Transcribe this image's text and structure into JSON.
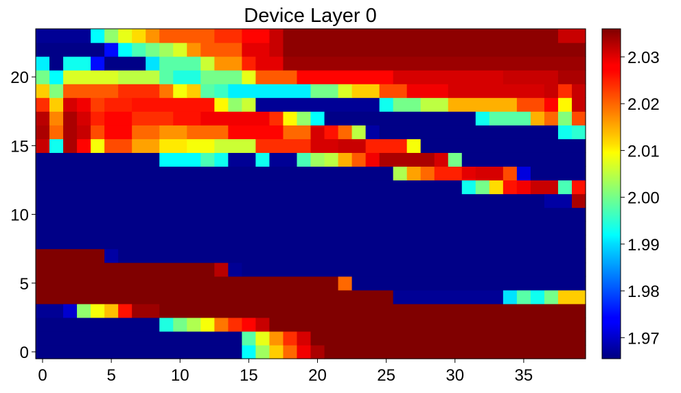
{
  "chart_data": {
    "type": "heatmap",
    "title": "Device Layer 0",
    "xlabel": "",
    "ylabel": "",
    "x_range": [
      -0.5,
      39.5
    ],
    "y_range": [
      -0.5,
      23.5
    ],
    "x_ticks": [
      "0",
      "5",
      "10",
      "15",
      "20",
      "25",
      "30",
      "35"
    ],
    "y_ticks": [
      "0",
      "5",
      "10",
      "15",
      "20"
    ],
    "colormap": "jet",
    "colorbar": {
      "min": 1.9655,
      "max": 2.036,
      "ticks": [
        "1.97",
        "1.98",
        "1.99",
        "2.00",
        "2.01",
        "2.02",
        "2.03"
      ]
    },
    "grid": false,
    "rows": [
      {
        "y": 0,
        "cells": [
          [
            0,
            14,
            1.966
          ],
          [
            15,
            15,
            1.992
          ],
          [
            16,
            16,
            2.003
          ],
          [
            17,
            17,
            2.013
          ],
          [
            18,
            18,
            2.02
          ],
          [
            19,
            19,
            2.028
          ],
          [
            20,
            20,
            2.033
          ],
          [
            21,
            39,
            2.036
          ]
        ]
      },
      {
        "y": 1,
        "cells": [
          [
            0,
            14,
            1.966
          ],
          [
            15,
            15,
            1.998
          ],
          [
            16,
            16,
            2.008
          ],
          [
            17,
            17,
            2.017
          ],
          [
            18,
            18,
            2.024
          ],
          [
            19,
            19,
            2.03
          ],
          [
            20,
            39,
            2.036
          ]
        ]
      },
      {
        "y": 2,
        "cells": [
          [
            0,
            8,
            1.966
          ],
          [
            9,
            9,
            1.994
          ],
          [
            10,
            10,
            2.0
          ],
          [
            11,
            11,
            2.004
          ],
          [
            12,
            12,
            2.009
          ],
          [
            13,
            13,
            2.019
          ],
          [
            14,
            14,
            2.024
          ],
          [
            15,
            15,
            2.027
          ],
          [
            16,
            16,
            2.031
          ],
          [
            17,
            39,
            2.036
          ]
        ]
      },
      {
        "y": 3,
        "cells": [
          [
            0,
            1,
            1.967
          ],
          [
            2,
            2,
            1.971
          ],
          [
            3,
            3,
            2.002
          ],
          [
            4,
            4,
            2.009
          ],
          [
            5,
            5,
            2.014
          ],
          [
            6,
            6,
            2.026
          ],
          [
            7,
            8,
            2.034
          ],
          [
            9,
            39,
            2.036
          ]
        ]
      },
      {
        "y": 4,
        "cells": [
          [
            0,
            25,
            2.036
          ],
          [
            26,
            33,
            1.967
          ],
          [
            34,
            34,
            1.99
          ],
          [
            35,
            35,
            1.998
          ],
          [
            36,
            36,
            1.993
          ],
          [
            37,
            37,
            2.0
          ],
          [
            38,
            39,
            2.013
          ]
        ]
      },
      {
        "y": 5,
        "cells": [
          [
            0,
            21,
            2.036
          ],
          [
            22,
            22,
            2.02
          ],
          [
            23,
            39,
            1.966
          ]
        ]
      },
      {
        "y": 6,
        "cells": [
          [
            0,
            12,
            2.036
          ],
          [
            13,
            13,
            2.032
          ],
          [
            14,
            14,
            1.967
          ],
          [
            15,
            39,
            1.966
          ]
        ]
      },
      {
        "y": 7,
        "cells": [
          [
            0,
            4,
            2.036
          ],
          [
            5,
            5,
            1.968
          ],
          [
            6,
            39,
            1.966
          ]
        ]
      },
      {
        "y": 8,
        "cells": [
          [
            0,
            39,
            1.966
          ]
        ]
      },
      {
        "y": 9,
        "cells": [
          [
            0,
            39,
            1.966
          ]
        ]
      },
      {
        "y": 10,
        "cells": [
          [
            0,
            39,
            1.966
          ]
        ]
      },
      {
        "y": 11,
        "cells": [
          [
            0,
            36,
            1.966
          ],
          [
            37,
            38,
            1.968
          ],
          [
            39,
            39,
            2.033
          ]
        ]
      },
      {
        "y": 12,
        "cells": [
          [
            0,
            30,
            1.966
          ],
          [
            31,
            31,
            1.993
          ],
          [
            32,
            32,
            2.0
          ],
          [
            33,
            33,
            2.012
          ],
          [
            34,
            34,
            2.026
          ],
          [
            35,
            35,
            2.028
          ],
          [
            36,
            37,
            2.031
          ],
          [
            38,
            38,
            1.997
          ],
          [
            39,
            39,
            2.026
          ]
        ]
      },
      {
        "y": 13,
        "cells": [
          [
            0,
            25,
            1.966
          ],
          [
            26,
            26,
            2.004
          ],
          [
            27,
            27,
            2.016
          ],
          [
            28,
            28,
            2.02
          ],
          [
            29,
            30,
            2.025
          ],
          [
            31,
            31,
            2.029
          ],
          [
            32,
            33,
            2.03
          ],
          [
            34,
            34,
            2.022
          ],
          [
            35,
            35,
            1.972
          ],
          [
            36,
            39,
            1.966
          ]
        ]
      },
      {
        "y": 14,
        "cells": [
          [
            0,
            8,
            1.966
          ],
          [
            9,
            11,
            1.992
          ],
          [
            12,
            12,
            1.997
          ],
          [
            13,
            13,
            1.993
          ],
          [
            14,
            15,
            1.967
          ],
          [
            16,
            16,
            1.993
          ],
          [
            17,
            18,
            1.967
          ],
          [
            19,
            19,
            1.997
          ],
          [
            20,
            20,
            2.003
          ],
          [
            21,
            21,
            2.005
          ],
          [
            22,
            22,
            2.015
          ],
          [
            23,
            23,
            2.021
          ],
          [
            24,
            24,
            2.028
          ],
          [
            25,
            28,
            2.033
          ],
          [
            29,
            29,
            2.03
          ],
          [
            30,
            30,
            2.0
          ],
          [
            31,
            39,
            1.966
          ]
        ]
      },
      {
        "y": 15,
        "cells": [
          [
            0,
            0,
            2.031
          ],
          [
            1,
            1,
            1.993
          ],
          [
            2,
            2,
            2.033
          ],
          [
            3,
            3,
            2.027
          ],
          [
            4,
            4,
            2.009
          ],
          [
            5,
            6,
            2.022
          ],
          [
            7,
            8,
            2.016
          ],
          [
            9,
            10,
            2.011
          ],
          [
            11,
            12,
            2.009
          ],
          [
            13,
            15,
            2.006
          ],
          [
            16,
            19,
            2.024
          ],
          [
            20,
            21,
            2.03
          ],
          [
            22,
            23,
            2.031
          ],
          [
            24,
            26,
            2.025
          ],
          [
            27,
            27,
            2.009
          ],
          [
            28,
            39,
            1.966
          ]
        ]
      },
      {
        "y": 16,
        "cells": [
          [
            0,
            0,
            2.033
          ],
          [
            1,
            1,
            2.02
          ],
          [
            2,
            2,
            2.033
          ],
          [
            3,
            3,
            2.031
          ],
          [
            4,
            4,
            2.022
          ],
          [
            5,
            6,
            2.027
          ],
          [
            7,
            8,
            2.02
          ],
          [
            9,
            10,
            2.017
          ],
          [
            11,
            13,
            2.02
          ],
          [
            14,
            17,
            2.027
          ],
          [
            18,
            18,
            2.02
          ],
          [
            19,
            19,
            2.02
          ],
          [
            20,
            20,
            2.03
          ],
          [
            21,
            21,
            2.026
          ],
          [
            22,
            22,
            2.02
          ],
          [
            23,
            23,
            2.005
          ],
          [
            24,
            24,
            1.968
          ],
          [
            25,
            37,
            1.966
          ],
          [
            38,
            38,
            1.993
          ],
          [
            39,
            39,
            1.995
          ]
        ]
      },
      {
        "y": 17,
        "cells": [
          [
            0,
            0,
            2.032
          ],
          [
            1,
            1,
            2.018
          ],
          [
            2,
            2,
            2.033
          ],
          [
            3,
            3,
            2.03
          ],
          [
            4,
            4,
            2.025
          ],
          [
            5,
            6,
            2.027
          ],
          [
            7,
            9,
            2.024
          ],
          [
            10,
            11,
            2.026
          ],
          [
            12,
            16,
            2.028
          ],
          [
            17,
            17,
            2.024
          ],
          [
            18,
            18,
            2.01
          ],
          [
            19,
            19,
            2.002
          ],
          [
            20,
            20,
            1.992
          ],
          [
            21,
            31,
            1.966
          ],
          [
            32,
            32,
            1.993
          ],
          [
            33,
            35,
            1.998
          ],
          [
            36,
            36,
            2.015
          ],
          [
            37,
            37,
            2.02
          ],
          [
            38,
            38,
            2.001
          ],
          [
            39,
            39,
            2.022
          ]
        ]
      },
      {
        "y": 18,
        "cells": [
          [
            0,
            0,
            2.024
          ],
          [
            1,
            1,
            2.013
          ],
          [
            2,
            2,
            2.03
          ],
          [
            3,
            3,
            2.028
          ],
          [
            4,
            4,
            2.023
          ],
          [
            5,
            6,
            2.025
          ],
          [
            7,
            12,
            2.026
          ],
          [
            13,
            13,
            2.01
          ],
          [
            14,
            14,
            2.002
          ],
          [
            15,
            15,
            2.006
          ],
          [
            16,
            24,
            1.967
          ],
          [
            25,
            25,
            1.993
          ],
          [
            26,
            27,
            2.0
          ],
          [
            28,
            29,
            2.005
          ],
          [
            30,
            34,
            2.015
          ],
          [
            35,
            36,
            2.022
          ],
          [
            37,
            37,
            2.027
          ],
          [
            38,
            38,
            2.01
          ],
          [
            39,
            39,
            2.031
          ]
        ]
      },
      {
        "y": 19,
        "cells": [
          [
            0,
            0,
            2.013
          ],
          [
            1,
            1,
            2.001
          ],
          [
            2,
            5,
            2.021
          ],
          [
            6,
            8,
            2.024
          ],
          [
            9,
            9,
            2.019
          ],
          [
            10,
            10,
            2.009
          ],
          [
            11,
            11,
            2.013
          ],
          [
            12,
            12,
            1.998
          ],
          [
            13,
            13,
            1.996
          ],
          [
            14,
            19,
            1.991
          ],
          [
            20,
            21,
            2.0
          ],
          [
            22,
            22,
            2.007
          ],
          [
            23,
            24,
            2.013
          ],
          [
            25,
            26,
            2.022
          ],
          [
            27,
            29,
            2.028
          ],
          [
            30,
            36,
            2.03
          ],
          [
            37,
            37,
            2.031
          ],
          [
            38,
            38,
            2.024
          ],
          [
            39,
            39,
            2.031
          ]
        ]
      },
      {
        "y": 20,
        "cells": [
          [
            0,
            0,
            2.0
          ],
          [
            1,
            1,
            1.992
          ],
          [
            2,
            5,
            2.007
          ],
          [
            6,
            8,
            2.005
          ],
          [
            9,
            9,
            1.998
          ],
          [
            10,
            11,
            1.994
          ],
          [
            12,
            14,
            2.0
          ],
          [
            15,
            15,
            2.008
          ],
          [
            16,
            18,
            2.021
          ],
          [
            19,
            25,
            2.027
          ],
          [
            26,
            33,
            2.03
          ],
          [
            34,
            37,
            2.031
          ],
          [
            38,
            39,
            2.033
          ]
        ]
      },
      {
        "y": 21,
        "cells": [
          [
            0,
            0,
            1.991
          ],
          [
            1,
            1,
            1.966
          ],
          [
            2,
            3,
            1.993
          ],
          [
            4,
            4,
            1.975
          ],
          [
            5,
            7,
            1.966
          ],
          [
            8,
            8,
            1.99
          ],
          [
            9,
            11,
            1.998
          ],
          [
            12,
            12,
            2.006
          ],
          [
            13,
            14,
            2.017
          ],
          [
            15,
            15,
            2.025
          ],
          [
            16,
            17,
            2.029
          ],
          [
            18,
            39,
            2.034
          ]
        ]
      },
      {
        "y": 22,
        "cells": [
          [
            0,
            4,
            1.966
          ],
          [
            5,
            5,
            1.975
          ],
          [
            6,
            6,
            1.992
          ],
          [
            7,
            7,
            1.997
          ],
          [
            8,
            8,
            2.0
          ],
          [
            9,
            9,
            2.003
          ],
          [
            10,
            10,
            2.007
          ],
          [
            11,
            11,
            2.017
          ],
          [
            12,
            14,
            2.021
          ],
          [
            15,
            16,
            2.029
          ],
          [
            17,
            17,
            2.031
          ],
          [
            18,
            39,
            2.035
          ]
        ]
      },
      {
        "y": 23,
        "cells": [
          [
            0,
            3,
            1.967
          ],
          [
            4,
            4,
            1.992
          ],
          [
            5,
            5,
            2.002
          ],
          [
            6,
            6,
            2.008
          ],
          [
            7,
            7,
            2.012
          ],
          [
            8,
            8,
            2.017
          ],
          [
            9,
            12,
            2.021
          ],
          [
            13,
            14,
            2.024
          ],
          [
            15,
            16,
            2.027
          ],
          [
            17,
            17,
            2.031
          ],
          [
            18,
            37,
            2.035
          ],
          [
            38,
            39,
            2.031
          ]
        ]
      }
    ]
  }
}
